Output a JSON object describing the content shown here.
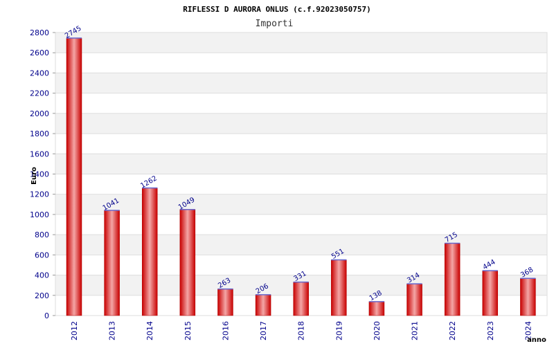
{
  "chart_data": {
    "type": "bar",
    "title": "RIFLESSI D AURORA ONLUS (c.f.92023050757)",
    "subtitle": "Importi",
    "xlabel": "anno",
    "ylabel": "Euro",
    "ylim": [
      0,
      2800
    ],
    "ytick_step": 200,
    "grid": true,
    "categories": [
      "2012",
      "2013",
      "2014",
      "2015",
      "2016",
      "2017",
      "2018",
      "2019",
      "2020",
      "2021",
      "2022",
      "2023",
      "2024"
    ],
    "values": [
      2745,
      1041,
      1262,
      1049,
      263,
      206,
      331,
      551,
      138,
      314,
      715,
      444,
      368
    ],
    "colors": {
      "bar_edge": "#cc0000",
      "bar_center": "#f4a0a0",
      "bar_top": "#6666cc",
      "band_alt": "#f2f2f2",
      "tick_text": "#00008b"
    }
  }
}
